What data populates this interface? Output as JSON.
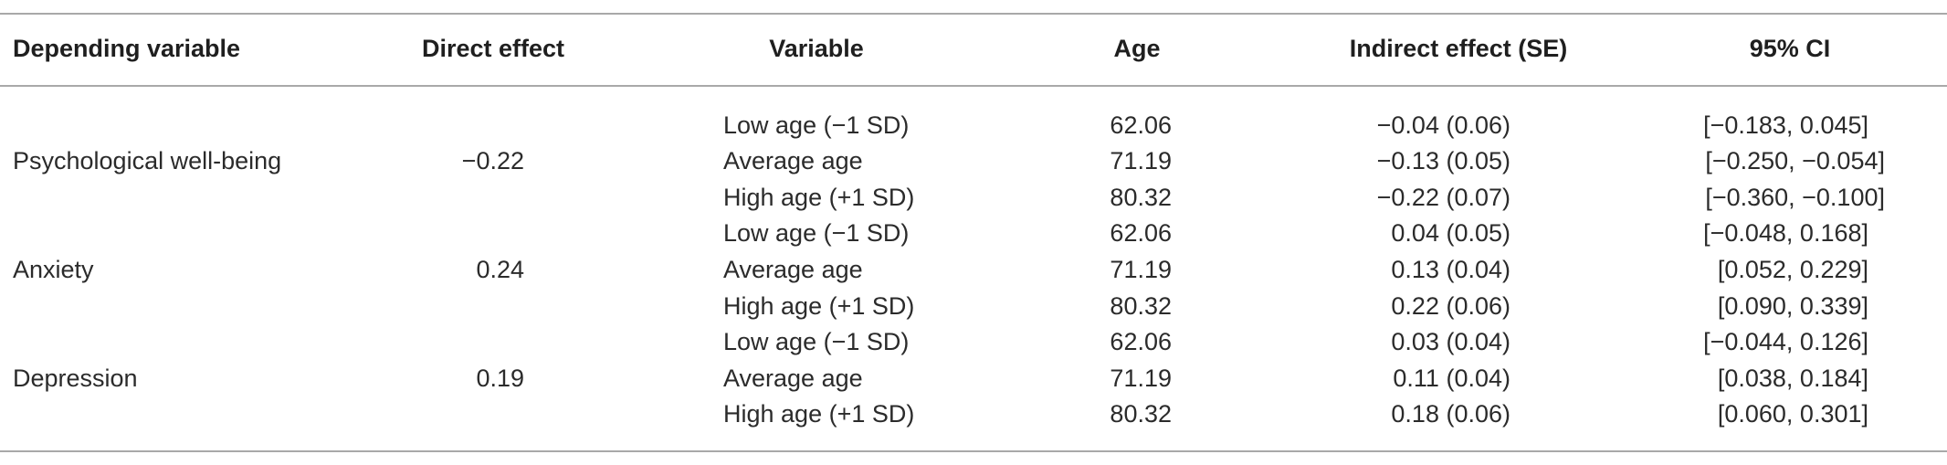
{
  "columns": [
    "Depending variable",
    "Direct effect",
    "Variable",
    "Age",
    "Indirect effect (SE)",
    "95% CI"
  ],
  "groups": [
    {
      "dependent": "Psychological well-being",
      "direct_effect": "−0.22",
      "rows": [
        {
          "variable": "Low age (−1 SD)",
          "age": "62.06",
          "indirect": "−0.04 (0.06)",
          "ci": "[−0.183, 0.045]"
        },
        {
          "variable": "Average age",
          "age": "71.19",
          "indirect": "−0.13 (0.05)",
          "ci": "[−0.250, −0.054]"
        },
        {
          "variable": "High age (+1 SD)",
          "age": "80.32",
          "indirect": "−0.22 (0.07)",
          "ci": "[−0.360, −0.100]"
        }
      ]
    },
    {
      "dependent": "Anxiety",
      "direct_effect": "0.24",
      "rows": [
        {
          "variable": "Low age (−1 SD)",
          "age": "62.06",
          "indirect": "0.04 (0.05)",
          "ci": "[−0.048, 0.168]"
        },
        {
          "variable": "Average age",
          "age": "71.19",
          "indirect": "0.13 (0.04)",
          "ci": "[0.052, 0.229]"
        },
        {
          "variable": "High age (+1 SD)",
          "age": "80.32",
          "indirect": "0.22 (0.06)",
          "ci": "[0.090, 0.339]"
        }
      ]
    },
    {
      "dependent": "Depression",
      "direct_effect": "0.19",
      "rows": [
        {
          "variable": "Low age (−1 SD)",
          "age": "62.06",
          "indirect": "0.03 (0.04)",
          "ci": "[−0.044, 0.126]"
        },
        {
          "variable": "Average age",
          "age": "71.19",
          "indirect": "0.11 (0.04)",
          "ci": "[0.038, 0.184]"
        },
        {
          "variable": "High age (+1 SD)",
          "age": "80.32",
          "indirect": "0.18 (0.06)",
          "ci": "[0.060, 0.301]"
        }
      ]
    }
  ]
}
